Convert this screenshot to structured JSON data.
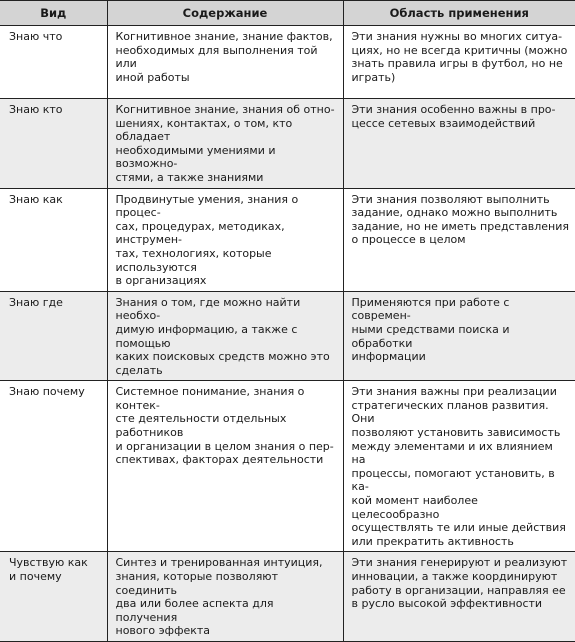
{
  "table": {
    "headers": [
      "Вид",
      "Содержание",
      "Область применения"
    ],
    "rows": [
      {
        "kind": "Знаю что",
        "content": "Когнитивное знание, знание фактов,\nнеобходимых для выполнения той или\nиной работы",
        "application": "Эти знания нужны во многих ситуа-\nциях, но не всегда критичны (можно\nзнать правила игры в футбол, но не\nиграть)"
      },
      {
        "kind": "Знаю кто",
        "content": "Когнитивное знание, знания об отно-\nшениях, контактах, о том, кто обладает\nнеобходимыми умениями и возможно-\nстями, а также знаниями",
        "application": "Эти знания особенно важны в про-\nцессе сетевых взаимодействий"
      },
      {
        "kind": "Знаю как",
        "content": "Продвинутые умения, знания о процес-\nсах, процедурах, методиках, инструмен-\nтах, технологиях, которые используются\nв организациях",
        "application": "Эти знания позволяют выполнить\nзадание, однако можно выполнить\nзадание, но не иметь представления\nо процессе в целом"
      },
      {
        "kind": "Знаю где",
        "content": "Знания о том, где можно найти необхо-\nдимую информацию, а также с помощью\nкаких поисковых средств можно это\nсделать",
        "application": "Применяются при работе с современ-\nными средствами поиска и обработки\nинформации"
      },
      {
        "kind": "Знаю почему",
        "content": "Системное понимание, знания о контек-\nсте деятельности отдельных работников\nи организации в целом знания о пер-\nспективах, факторах деятельности",
        "application": "Эти знания важны при реализации\nстратегических планов развития. Они\nпозволяют установить зависимость\nмежду элементами и их влиянием на\nпроцессы, помогают установить, в ка-\nкой момент наиболее целесообразно\nосуществлять те или иные действия\nили прекратить активность"
      },
      {
        "kind": "Чувствую как\nи почему",
        "content": "Синтез и тренированная интуиция,\nзнания, которые позволяют соединить\nдва или более аспекта для получения\nнового эффекта",
        "application": "Эти знания генерируют и реализуют\nинновации, а также координируют\nработу в организации, направляя ее\nв русло высокой эффективности"
      }
    ]
  }
}
